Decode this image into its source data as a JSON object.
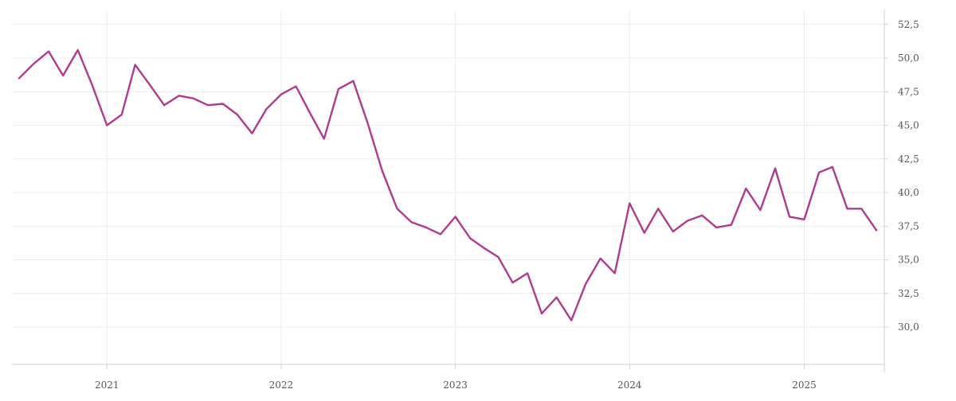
{
  "chart_data": {
    "type": "line",
    "title": "",
    "xlabel": "",
    "ylabel": "",
    "x_ticks": [
      "2021",
      "2022",
      "2023",
      "2024",
      "2025"
    ],
    "y_ticks": [
      "30,0",
      "32,5",
      "35,0",
      "37,5",
      "40,0",
      "42,5",
      "45,0",
      "47,5",
      "50,0",
      "52,5"
    ],
    "ylim": [
      27.5,
      53.5
    ],
    "xlim": [
      "2020-07-01",
      "2025-07-01"
    ],
    "grid": true,
    "legend": "none",
    "colors": {
      "line": "#b03a8f",
      "grid": "#ececec",
      "axis": "#d0d0d0"
    },
    "series": [
      {
        "x": [
          "2020-07",
          "2020-08",
          "2020-09",
          "2020-10",
          "2020-11",
          "2020-12",
          "2021-01",
          "2021-02",
          "2021-03",
          "2021-04",
          "2021-05",
          "2021-06",
          "2021-07",
          "2021-08",
          "2021-09",
          "2021-10",
          "2021-11",
          "2021-12",
          "2022-01",
          "2022-02",
          "2022-03",
          "2022-04",
          "2022-05",
          "2022-06",
          "2022-07",
          "2022-08",
          "2022-09",
          "2022-10",
          "2022-11",
          "2022-12",
          "2023-01",
          "2023-02",
          "2023-03",
          "2023-04",
          "2023-05",
          "2023-06",
          "2023-07",
          "2023-08",
          "2023-09",
          "2023-10",
          "2023-11",
          "2023-12",
          "2024-01",
          "2024-02",
          "2024-03",
          "2024-04",
          "2024-05",
          "2024-06",
          "2024-07",
          "2024-08",
          "2024-09",
          "2024-10",
          "2024-11",
          "2024-12",
          "2025-01",
          "2025-02",
          "2025-03",
          "2025-04",
          "2025-05",
          "2025-06"
        ],
        "values": [
          48.5,
          49.6,
          50.5,
          48.7,
          50.6,
          48.0,
          45.0,
          45.8,
          49.5,
          48.0,
          46.5,
          47.2,
          47.0,
          46.5,
          46.6,
          45.8,
          44.4,
          46.2,
          47.3,
          47.9,
          46.0,
          44.0,
          47.7,
          48.3,
          45.2,
          41.6,
          38.8,
          37.8,
          37.4,
          36.9,
          38.2,
          36.6,
          35.9,
          35.2,
          33.3,
          34.0,
          31.0,
          32.2,
          30.5,
          33.2,
          35.1,
          34.0,
          39.2,
          37.0,
          38.8,
          37.1,
          37.9,
          38.3,
          37.4,
          37.6,
          40.3,
          38.7,
          41.8,
          38.2,
          38.0,
          41.5,
          41.9,
          38.8,
          38.8,
          37.2
        ]
      }
    ]
  }
}
